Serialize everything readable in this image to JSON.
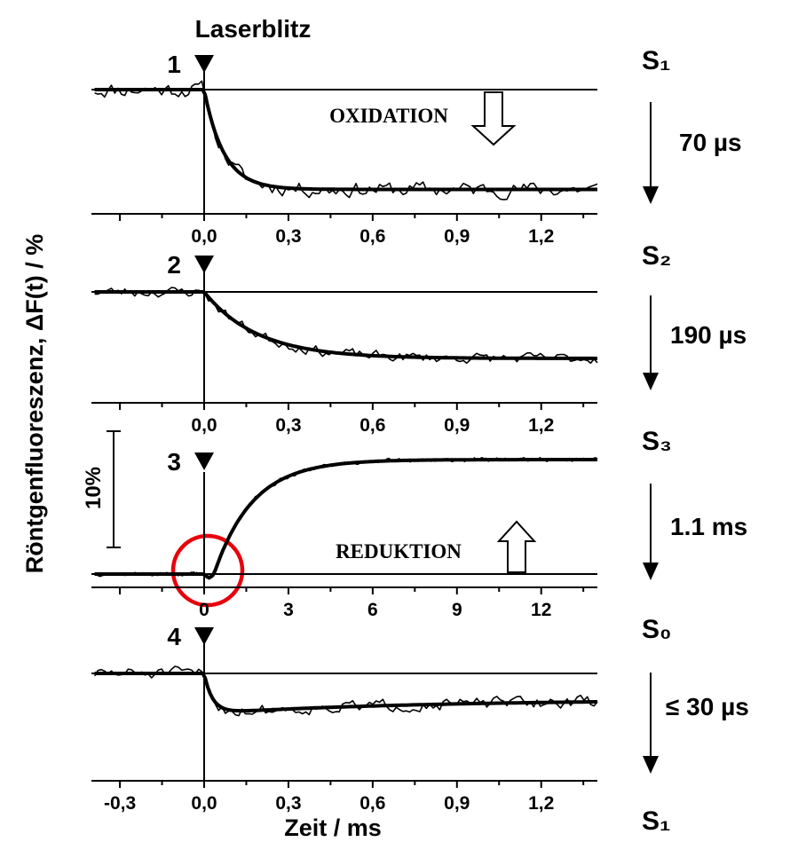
{
  "figure": {
    "ylabel": "Röntgenfluoreszenz, ΔF(t) / %",
    "xlabel": "Zeit / ms",
    "flash_label": "Laserblitz",
    "scalebar_label": "10%",
    "states": [
      "S₁",
      "S₂",
      "S₃",
      "S₀",
      "S₁"
    ],
    "transitions": [
      "70 µs",
      "190 µs",
      "1.1 ms",
      "≤ 30 µs"
    ],
    "oxidation_label": "OXIDATION",
    "reduction_label": "REDUKTION"
  },
  "chart_data": [
    {
      "type": "line",
      "panel_number": "1",
      "x_unit": "ms",
      "xlim": [
        -0.39,
        1.4
      ],
      "tick_values": [
        0.0,
        0.3,
        0.6,
        0.9,
        1.2
      ],
      "tick_labels": [
        "0,0",
        "0,3",
        "0,6",
        "0,9",
        "1,2"
      ],
      "baseline_percent": 0,
      "amplitude_percent": -7.5,
      "time_constant": 0.07,
      "direction": "down",
      "noise_level": 0.9,
      "seed": 11
    },
    {
      "type": "line",
      "panel_number": "2",
      "x_unit": "ms",
      "xlim": [
        -0.39,
        1.4
      ],
      "tick_values": [
        0.0,
        0.3,
        0.6,
        0.9,
        1.2
      ],
      "tick_labels": [
        "0,0",
        "0,3",
        "0,6",
        "0,9",
        "1,2"
      ],
      "baseline_percent": 0,
      "amplitude_percent": -5.0,
      "time_constant": 0.19,
      "direction": "down",
      "noise_level": 0.6,
      "seed": 23
    },
    {
      "type": "line",
      "panel_number": "3",
      "x_unit": "ms",
      "xlim": [
        -3.9,
        14.0
      ],
      "tick_values": [
        0,
        3,
        6,
        9,
        12
      ],
      "tick_labels": [
        "0",
        "3",
        "6",
        "9",
        "12"
      ],
      "baseline_percent": 0,
      "amplitude_percent": 10.0,
      "time_constant": 1.1,
      "direction": "up",
      "noise_level": 0.25,
      "seed": 37
    },
    {
      "type": "line",
      "panel_number": "4",
      "x_unit": "ms",
      "xlim": [
        -0.39,
        1.4
      ],
      "tick_values": [
        -0.3,
        0.0,
        0.3,
        0.6,
        0.9,
        1.2
      ],
      "tick_labels": [
        "-0,3",
        "0,0",
        "0,3",
        "0,6",
        "0,9",
        "1,2"
      ],
      "baseline_percent": 0,
      "amplitude_percent": -3.0,
      "time_constant": 0.03,
      "direction": "down",
      "noise_level": 0.7,
      "seed": 51
    }
  ]
}
